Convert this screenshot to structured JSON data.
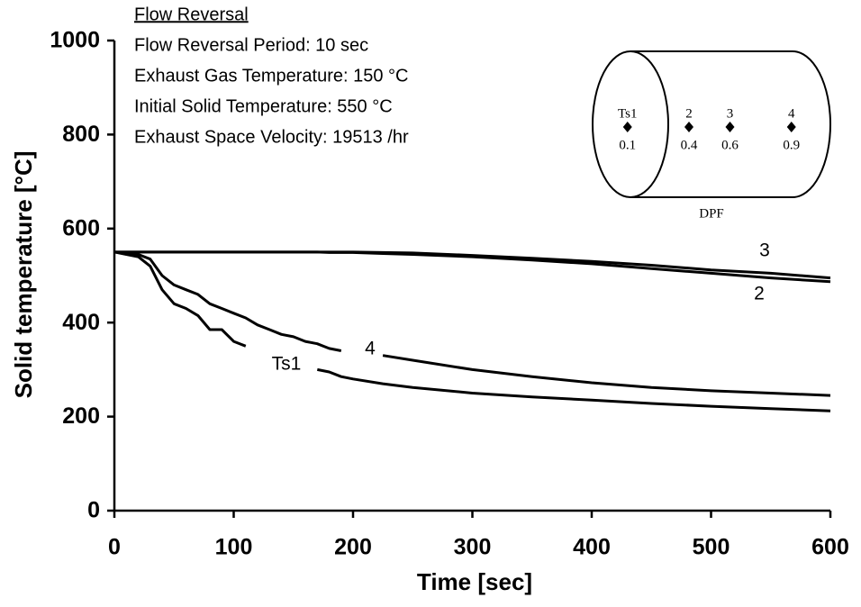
{
  "chart_data": {
    "type": "line",
    "xlabel": "Time [sec]",
    "ylabel": "Solid temperature [°C]",
    "xlim": [
      0,
      600
    ],
    "xticks": [
      0,
      100,
      200,
      300,
      400,
      500,
      600
    ],
    "ylim": [
      0,
      1000
    ],
    "yticks": [
      0,
      200,
      400,
      600,
      800,
      1000
    ],
    "grid": false,
    "annotations": [
      "Flow Reversal",
      "Flow Reversal Period: 10 sec",
      "Exhaust Gas Temperature: 150 °C",
      "Initial Solid Temperature: 550 °C",
      "Exhaust Space Velocity: 19513 /hr"
    ],
    "inset": {
      "label": "DPF",
      "points": [
        {
          "name": "Ts1",
          "position": 0.1
        },
        {
          "name": "2",
          "position": 0.4
        },
        {
          "name": "3",
          "position": 0.6
        },
        {
          "name": "4",
          "position": 0.9
        }
      ]
    },
    "x": [
      0,
      10,
      20,
      30,
      40,
      50,
      60,
      70,
      80,
      90,
      100,
      110,
      120,
      130,
      140,
      150,
      160,
      170,
      180,
      190,
      200,
      225,
      250,
      300,
      350,
      400,
      450,
      500,
      550,
      600
    ],
    "series": [
      {
        "name": "Ts1",
        "color": "#000000",
        "values": [
          550,
          545,
          540,
          520,
          470,
          440,
          430,
          415,
          385,
          385,
          360,
          350,
          null,
          null,
          null,
          null,
          null,
          300,
          295,
          285,
          280,
          270,
          262,
          250,
          242,
          235,
          228,
          222,
          217,
          212
        ]
      },
      {
        "name": "4",
        "color": "#000000",
        "values": [
          550,
          548,
          545,
          535,
          500,
          480,
          470,
          460,
          440,
          430,
          420,
          410,
          395,
          385,
          375,
          370,
          360,
          355,
          345,
          340,
          null,
          330,
          320,
          300,
          285,
          272,
          262,
          255,
          250,
          245
        ]
      },
      {
        "name": "2",
        "color": "#000000",
        "values": [
          550,
          550,
          550,
          550,
          550,
          550,
          550,
          550,
          550,
          550,
          550,
          550,
          550,
          550,
          550,
          550,
          550,
          550,
          549,
          549,
          549,
          547,
          545,
          540,
          533,
          525,
          515,
          505,
          495,
          487
        ]
      },
      {
        "name": "3",
        "color": "#000000",
        "values": [
          550,
          550,
          550,
          550,
          550,
          550,
          550,
          550,
          550,
          550,
          550,
          550,
          550,
          550,
          550,
          550,
          550,
          550,
          550,
          550,
          550,
          549,
          548,
          543,
          537,
          530,
          522,
          512,
          505,
          495
        ]
      }
    ]
  }
}
